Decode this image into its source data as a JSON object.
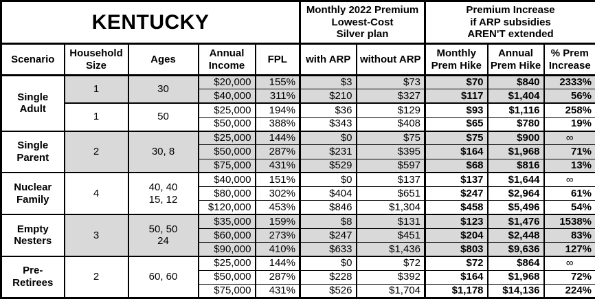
{
  "chart_data": {
    "type": "table",
    "title": "KENTUCKY",
    "section_headers": {
      "premium_group": "Monthly 2022 Premium\nLowest-Cost\nSilver plan",
      "increase_group": "Premium Increase\nif ARP subsidies\nAREN'T extended"
    },
    "columns": [
      {
        "key": "scenario",
        "label": "Scenario"
      },
      {
        "key": "household-size",
        "label": "Household\nSize"
      },
      {
        "key": "ages",
        "label": "Ages"
      },
      {
        "key": "annual-income",
        "label": "Annual\nIncome"
      },
      {
        "key": "fpl",
        "label": "FPL"
      },
      {
        "key": "with-arp",
        "label": "with ARP"
      },
      {
        "key": "without-arp",
        "label": "without ARP"
      },
      {
        "key": "monthly-prem-hike",
        "label": "Monthly\nPrem Hike"
      },
      {
        "key": "annual-prem-hike",
        "label": "Annual\nPrem Hike"
      },
      {
        "key": "pct-prem-increase",
        "label": "% Prem\nIncrease"
      }
    ],
    "colors": {
      "shaded_row": "#d9d9d9",
      "border": "#000000",
      "background": "#ffffff"
    },
    "groups": [
      {
        "scenario": "Single\nAdult",
        "subgroups": [
          {
            "size": "1",
            "ages": "30",
            "shaded": true,
            "rows": [
              {
                "income": "$20,000",
                "fpl": "155%",
                "with_arp": "$3",
                "without_arp": "$73",
                "monthly_hike": "$70",
                "annual_hike": "$840",
                "pct_increase": "2333%"
              },
              {
                "income": "$40,000",
                "fpl": "311%",
                "with_arp": "$210",
                "without_arp": "$327",
                "monthly_hike": "$117",
                "annual_hike": "$1,404",
                "pct_increase": "56%"
              }
            ]
          },
          {
            "size": "1",
            "ages": "50",
            "shaded": false,
            "rows": [
              {
                "income": "$25,000",
                "fpl": "194%",
                "with_arp": "$36",
                "without_arp": "$129",
                "monthly_hike": "$93",
                "annual_hike": "$1,116",
                "pct_increase": "258%"
              },
              {
                "income": "$50,000",
                "fpl": "388%",
                "with_arp": "$343",
                "without_arp": "$408",
                "monthly_hike": "$65",
                "annual_hike": "$780",
                "pct_increase": "19%"
              }
            ]
          }
        ]
      },
      {
        "scenario": "Single\nParent",
        "subgroups": [
          {
            "size": "2",
            "ages": "30, 8",
            "shaded": true,
            "rows": [
              {
                "income": "$25,000",
                "fpl": "144%",
                "with_arp": "$0",
                "without_arp": "$75",
                "monthly_hike": "$75",
                "annual_hike": "$900",
                "pct_increase": "∞"
              },
              {
                "income": "$50,000",
                "fpl": "287%",
                "with_arp": "$231",
                "without_arp": "$395",
                "monthly_hike": "$164",
                "annual_hike": "$1,968",
                "pct_increase": "71%"
              },
              {
                "income": "$75,000",
                "fpl": "431%",
                "with_arp": "$529",
                "without_arp": "$597",
                "monthly_hike": "$68",
                "annual_hike": "$816",
                "pct_increase": "13%"
              }
            ]
          }
        ]
      },
      {
        "scenario": "Nuclear\nFamily",
        "subgroups": [
          {
            "size": "4",
            "ages": "40, 40\n15, 12",
            "shaded": false,
            "rows": [
              {
                "income": "$40,000",
                "fpl": "151%",
                "with_arp": "$0",
                "without_arp": "$137",
                "monthly_hike": "$137",
                "annual_hike": "$1,644",
                "pct_increase": "∞"
              },
              {
                "income": "$80,000",
                "fpl": "302%",
                "with_arp": "$404",
                "without_arp": "$651",
                "monthly_hike": "$247",
                "annual_hike": "$2,964",
                "pct_increase": "61%"
              },
              {
                "income": "$120,000",
                "fpl": "453%",
                "with_arp": "$846",
                "without_arp": "$1,304",
                "monthly_hike": "$458",
                "annual_hike": "$5,496",
                "pct_increase": "54%"
              }
            ]
          }
        ]
      },
      {
        "scenario": "Empty\nNesters",
        "subgroups": [
          {
            "size": "3",
            "ages": "50, 50\n24",
            "shaded": true,
            "rows": [
              {
                "income": "$35,000",
                "fpl": "159%",
                "with_arp": "$8",
                "without_arp": "$131",
                "monthly_hike": "$123",
                "annual_hike": "$1,476",
                "pct_increase": "1538%"
              },
              {
                "income": "$60,000",
                "fpl": "273%",
                "with_arp": "$247",
                "without_arp": "$451",
                "monthly_hike": "$204",
                "annual_hike": "$2,448",
                "pct_increase": "83%"
              },
              {
                "income": "$90,000",
                "fpl": "410%",
                "with_arp": "$633",
                "without_arp": "$1,436",
                "monthly_hike": "$803",
                "annual_hike": "$9,636",
                "pct_increase": "127%"
              }
            ]
          }
        ]
      },
      {
        "scenario": "Pre-\nRetirees",
        "subgroups": [
          {
            "size": "2",
            "ages": "60, 60",
            "shaded": false,
            "rows": [
              {
                "income": "$25,000",
                "fpl": "144%",
                "with_arp": "$0",
                "without_arp": "$72",
                "monthly_hike": "$72",
                "annual_hike": "$864",
                "pct_increase": "∞"
              },
              {
                "income": "$50,000",
                "fpl": "287%",
                "with_arp": "$228",
                "without_arp": "$392",
                "monthly_hike": "$164",
                "annual_hike": "$1,968",
                "pct_increase": "72%"
              },
              {
                "income": "$75,000",
                "fpl": "431%",
                "with_arp": "$526",
                "without_arp": "$1,704",
                "monthly_hike": "$1,178",
                "annual_hike": "$14,136",
                "pct_increase": "224%"
              }
            ]
          }
        ]
      }
    ]
  }
}
